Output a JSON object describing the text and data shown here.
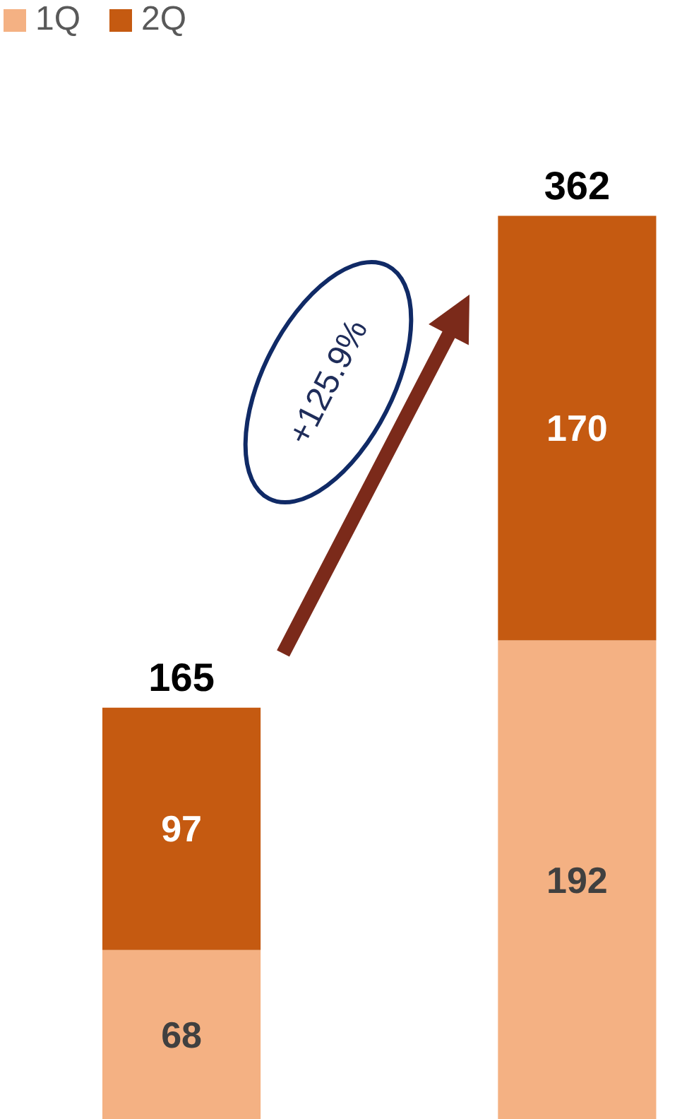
{
  "chart_data": {
    "type": "bar",
    "stacked": true,
    "categories": [
      null,
      null
    ],
    "series": [
      {
        "name": "1Q",
        "color": "#f4b183",
        "values": [
          68,
          192
        ]
      },
      {
        "name": "2Q",
        "color": "#c55a11",
        "values": [
          97,
          170
        ]
      }
    ],
    "data_labels": true,
    "totals": [
      "165",
      "362"
    ],
    "annotations": [
      "+125.9%"
    ],
    "legend": "top left",
    "tick_labels": false,
    "grid": false
  }
}
